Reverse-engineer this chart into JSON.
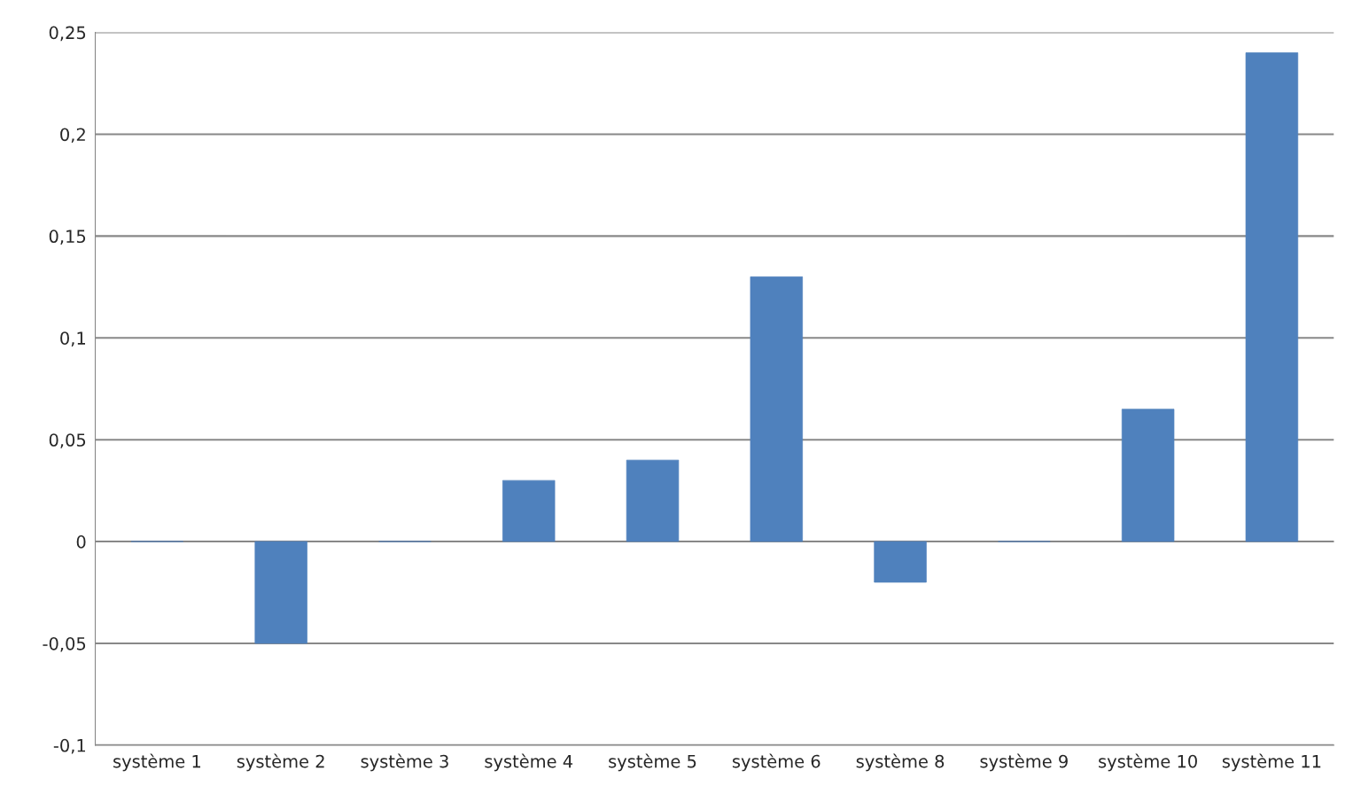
{
  "chart_data": {
    "type": "bar",
    "categories": [
      "système 1",
      "système 2",
      "système 3",
      "système 4",
      "système 5",
      "système 6",
      "système 8",
      "système 9",
      "système 10",
      "système 11"
    ],
    "values": [
      0,
      -0.05,
      0,
      0.03,
      0.04,
      0.13,
      -0.02,
      0,
      0.065,
      0.24
    ],
    "color": "#4f81bd",
    "ylim": [
      -0.1,
      0.25
    ],
    "yticks": [
      {
        "value": -0.1,
        "label": "-0,1"
      },
      {
        "value": -0.05,
        "label": "-0,05"
      },
      {
        "value": 0,
        "label": "0"
      },
      {
        "value": 0.05,
        "label": "0,05"
      },
      {
        "value": 0.1,
        "label": "0,1"
      },
      {
        "value": 0.15,
        "label": "0,15"
      },
      {
        "value": 0.2,
        "label": "0,2"
      },
      {
        "value": 0.25,
        "label": "0,25"
      }
    ],
    "grid": "y",
    "legend": false
  }
}
